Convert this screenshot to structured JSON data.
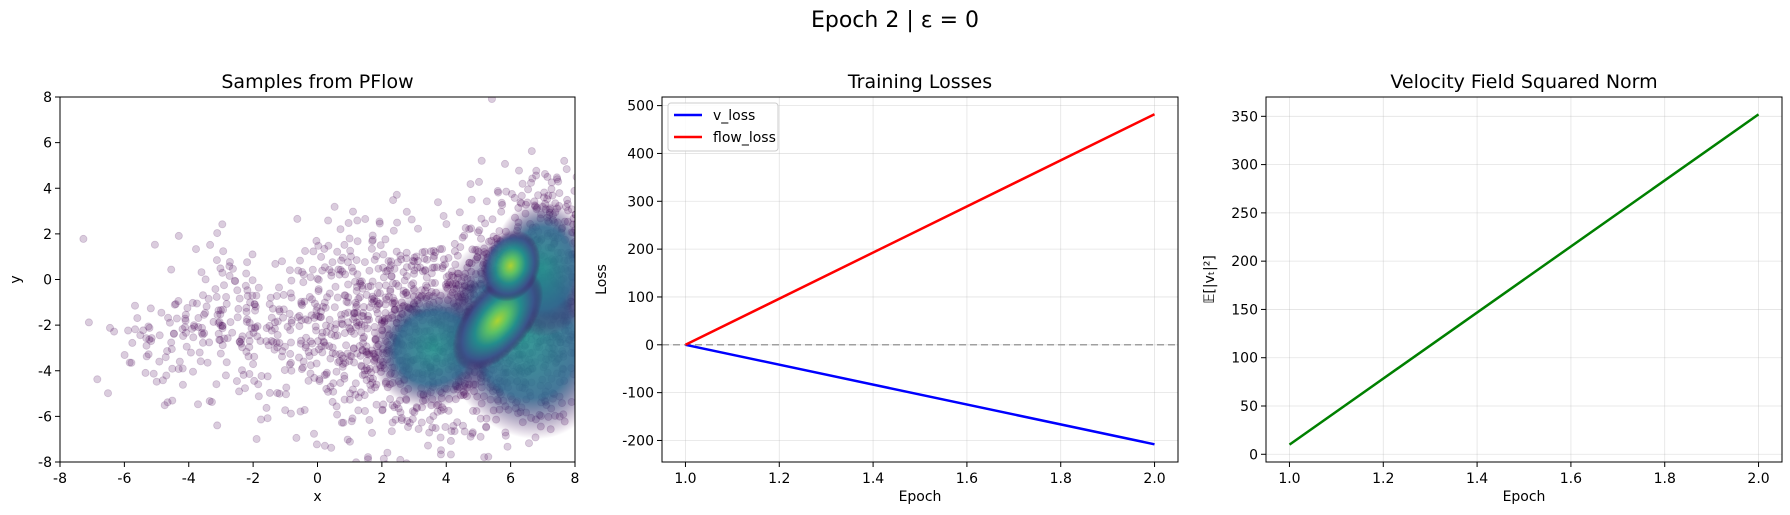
{
  "suptitle": "Epoch 2 | ε = 0",
  "chart_data": [
    {
      "type": "scatter",
      "title": "Samples from PFlow",
      "xlabel": "x",
      "ylabel": "y",
      "xlim": [
        -8,
        8
      ],
      "ylim": [
        -8,
        8
      ],
      "xticks": [
        -8,
        -6,
        -4,
        -2,
        0,
        2,
        4,
        6,
        8
      ],
      "yticks": [
        -8,
        -6,
        -4,
        -2,
        0,
        2,
        4,
        6,
        8
      ],
      "grid": false,
      "colormap": "viridis",
      "point_color": "#440154",
      "point_alpha": 0.2,
      "density_peak": [
        5.5,
        -1.8
      ],
      "points_shown": "dense cloud concentrated near x 3–8, y -7–3, sparse tail extending to x ≈ -7"
    },
    {
      "type": "line",
      "title": "Training Losses",
      "xlabel": "Epoch",
      "ylabel": "Loss",
      "xlim": [
        0.95,
        2.05
      ],
      "ylim": [
        -245,
        518
      ],
      "xticks": [
        1.0,
        1.2,
        1.4,
        1.6,
        1.8,
        2.0
      ],
      "xtick_labels": [
        "1.0",
        "1.2",
        "1.4",
        "1.6",
        "1.8",
        "2.0"
      ],
      "yticks": [
        -200,
        -100,
        0,
        100,
        200,
        300,
        400,
        500
      ],
      "grid": true,
      "legend": "top-left",
      "reference_line": {
        "y": 0,
        "style": "dashed",
        "color": "#a0a0a0"
      },
      "series": [
        {
          "name": "v_loss",
          "color": "#0000ff",
          "x": [
            1.0,
            2.0
          ],
          "y": [
            0,
            -208
          ]
        },
        {
          "name": "flow_loss",
          "color": "#ff0000",
          "x": [
            1.0,
            2.0
          ],
          "y": [
            0,
            482
          ]
        }
      ]
    },
    {
      "type": "line",
      "title": "Velocity Field Squared Norm",
      "xlabel": "Epoch",
      "ylabel": "𝔼[|vₜ|²]",
      "xlim": [
        0.95,
        2.05
      ],
      "ylim": [
        -8,
        370
      ],
      "xticks": [
        1.0,
        1.2,
        1.4,
        1.6,
        1.8,
        2.0
      ],
      "xtick_labels": [
        "1.0",
        "1.2",
        "1.4",
        "1.6",
        "1.8",
        "2.0"
      ],
      "yticks": [
        0,
        50,
        100,
        150,
        200,
        250,
        300,
        350
      ],
      "grid": true,
      "series": [
        {
          "color": "#008000",
          "x": [
            1.0,
            2.0
          ],
          "y": [
            10,
            352
          ]
        }
      ]
    }
  ]
}
